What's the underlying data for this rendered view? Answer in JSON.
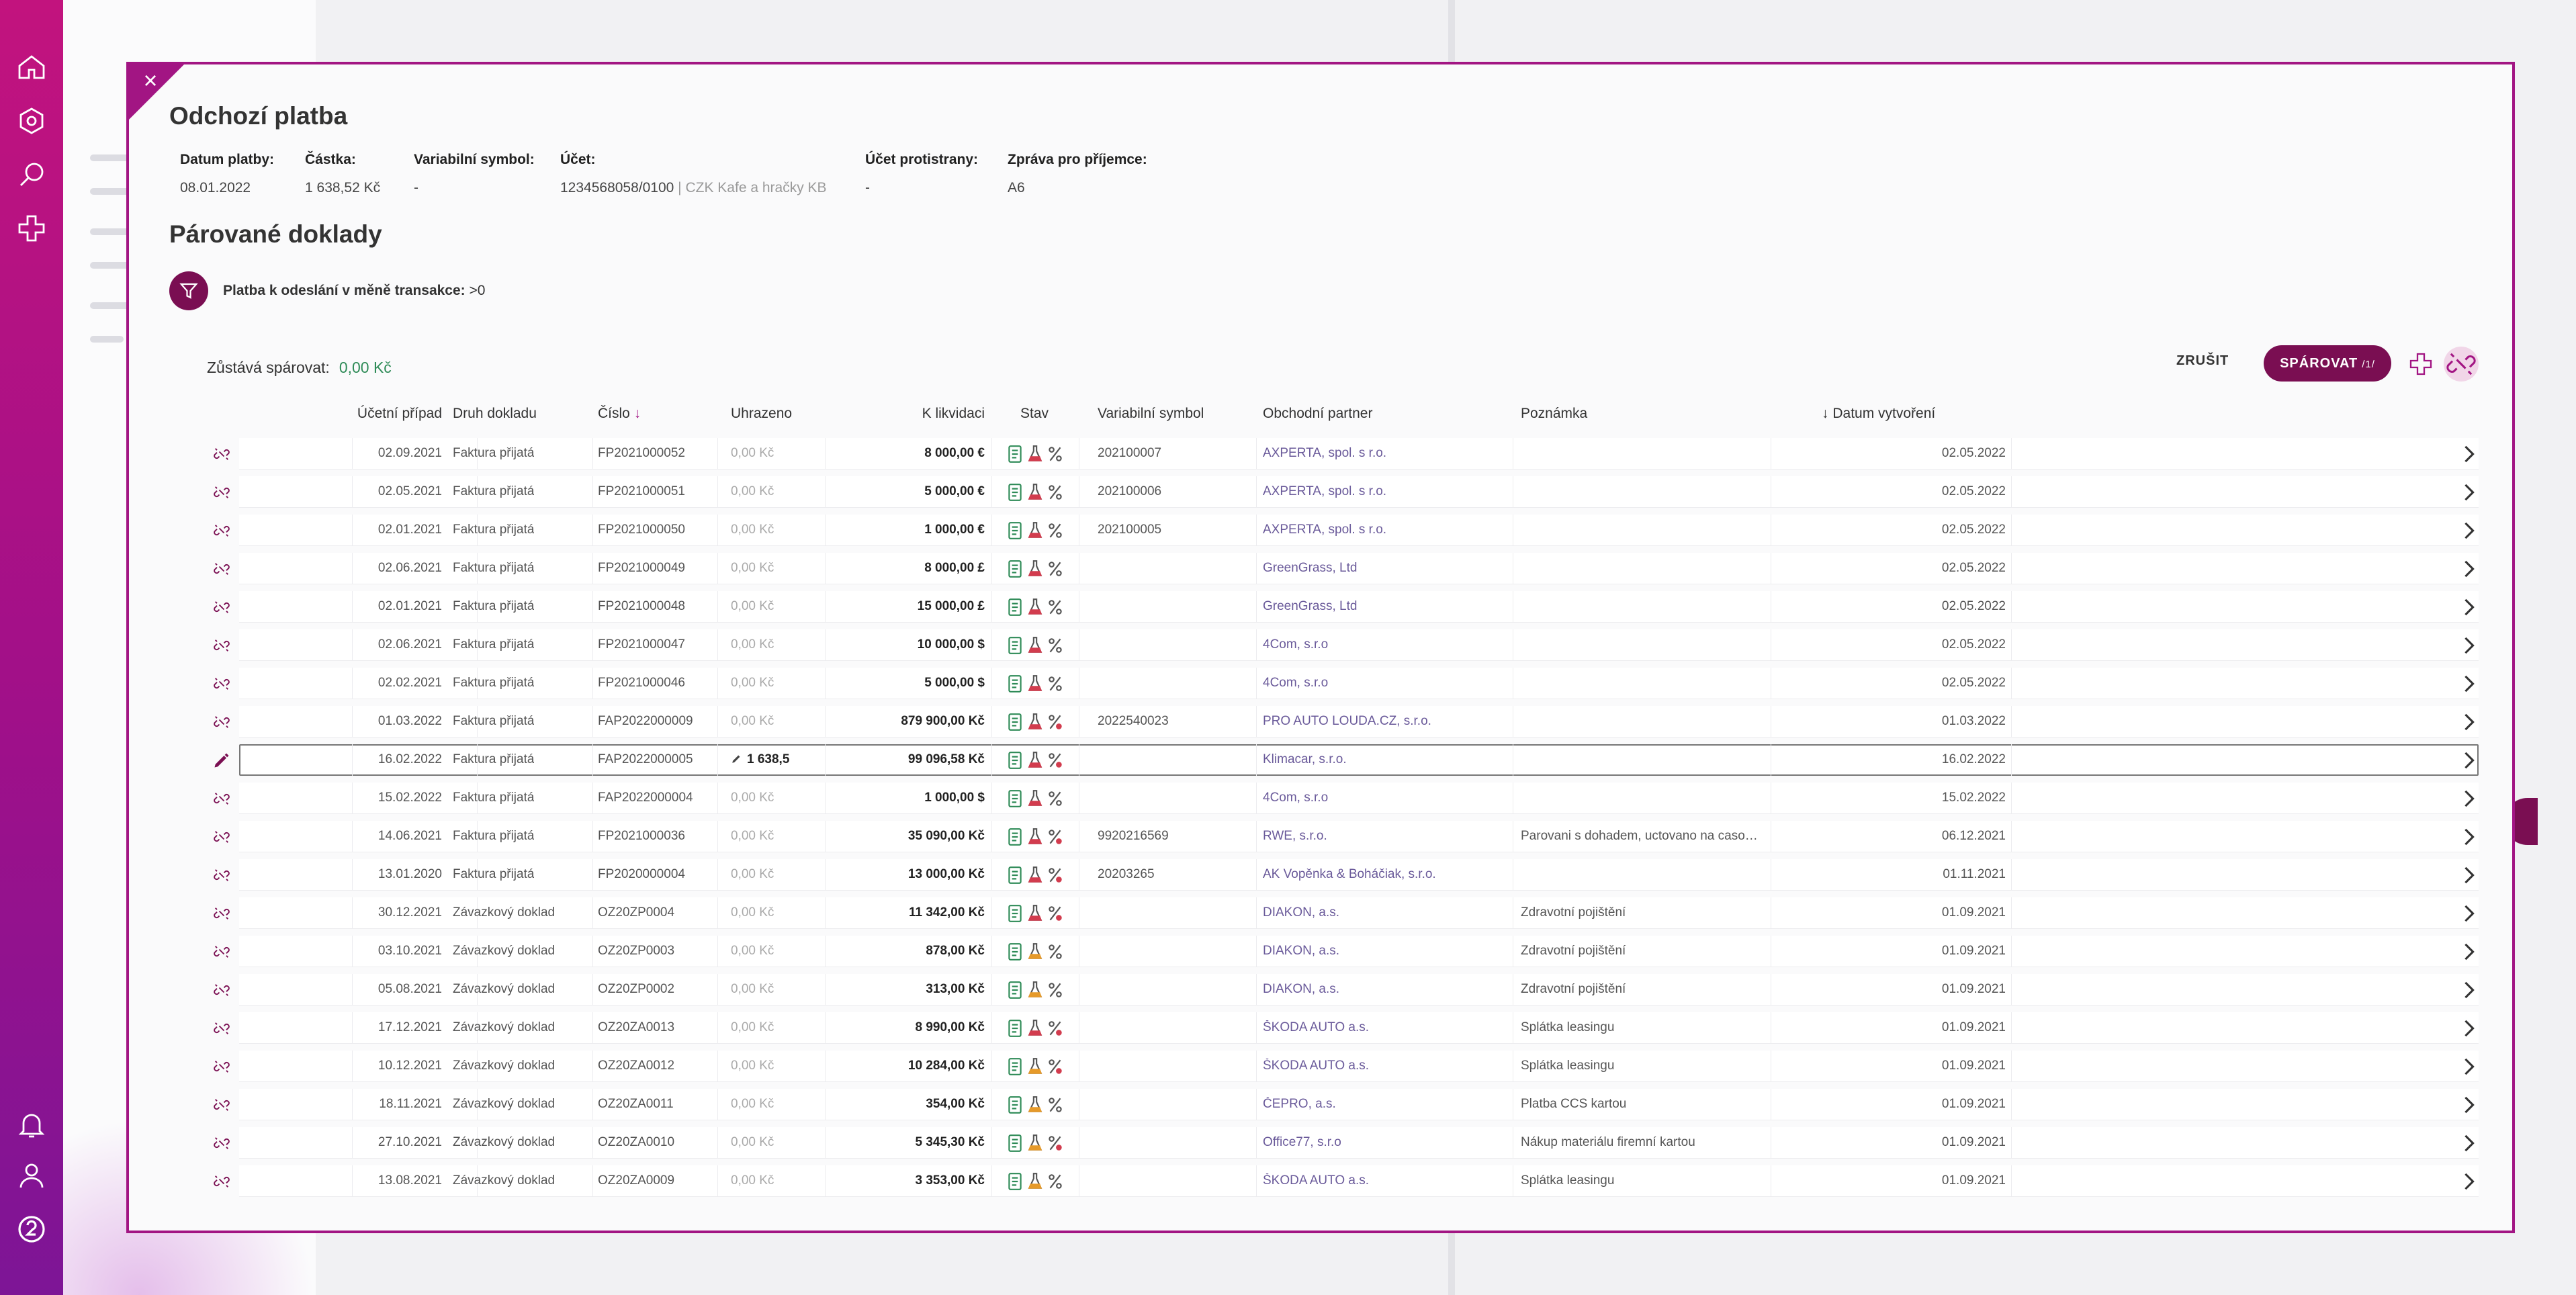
{
  "modal": {
    "title": "Odchozí platba",
    "paired_title": "Párované doklady"
  },
  "payment": [
    {
      "label": "Datum platby:",
      "value": "08.01.2022",
      "extra": ""
    },
    {
      "label": "Částka:",
      "value": "1 638,52 Kč",
      "extra": ""
    },
    {
      "label": "Variabilní symbol:",
      "value": "-",
      "extra": ""
    },
    {
      "label": "Účet:",
      "value": "1234568058/0100",
      "extra": " | CZK Kafe a hračky KB"
    },
    {
      "label": "Účet protistrany:",
      "value": "-",
      "extra": ""
    },
    {
      "label": "Zpráva pro příjemce:",
      "value": "A6",
      "extra": ""
    }
  ],
  "filter": {
    "label": "Platba k odeslání v měně transakce:",
    "value": ">0"
  },
  "remaining": {
    "label": "Zůstává spárovat:",
    "value": "0,00 Kč"
  },
  "actions": {
    "cancel": "ZRUŠIT",
    "pair": "SPÁROVAT",
    "pair_count": "/1/"
  },
  "columns": {
    "case": "Účetní případ",
    "doc_type": "Druh dokladu",
    "number": "Číslo",
    "number_sort": "↓",
    "paid": "Uhrazeno",
    "due": "K likvidaci",
    "status": "Stav",
    "vs": "Variabilní symbol",
    "partner": "Obchodní partner",
    "note": "Poznámka",
    "created": "Datum vytvoření",
    "created_sort": "↓"
  },
  "rows": [
    {
      "case": "02.09.2021",
      "doc_type": "Faktura přijatá",
      "number": "FP2021000052",
      "paid": "0,00 Kč",
      "due": "8 000,00 €",
      "vs": "202100007",
      "partner": "AXPERTA, spol. s r.o.",
      "note": "",
      "created": "02.05.2022",
      "s2": "red",
      "s3": "plain"
    },
    {
      "case": "02.05.2021",
      "doc_type": "Faktura přijatá",
      "number": "FP2021000051",
      "paid": "0,00 Kč",
      "due": "5 000,00 €",
      "vs": "202100006",
      "partner": "AXPERTA, spol. s r.o.",
      "note": "",
      "created": "02.05.2022",
      "s2": "red",
      "s3": "plain"
    },
    {
      "case": "02.01.2021",
      "doc_type": "Faktura přijatá",
      "number": "FP2021000050",
      "paid": "0,00 Kč",
      "due": "1 000,00 €",
      "vs": "202100005",
      "partner": "AXPERTA, spol. s r.o.",
      "note": "",
      "created": "02.05.2022",
      "s2": "red",
      "s3": "plain"
    },
    {
      "case": "02.06.2021",
      "doc_type": "Faktura přijatá",
      "number": "FP2021000049",
      "paid": "0,00 Kč",
      "due": "8 000,00 £",
      "vs": "",
      "partner": "GreenGrass, Ltd",
      "note": "",
      "created": "02.05.2022",
      "s2": "red",
      "s3": "plain"
    },
    {
      "case": "02.01.2021",
      "doc_type": "Faktura přijatá",
      "number": "FP2021000048",
      "paid": "0,00 Kč",
      "due": "15 000,00 £",
      "vs": "",
      "partner": "GreenGrass, Ltd",
      "note": "",
      "created": "02.05.2022",
      "s2": "red",
      "s3": "plain"
    },
    {
      "case": "02.06.2021",
      "doc_type": "Faktura přijatá",
      "number": "FP2021000047",
      "paid": "0,00 Kč",
      "due": "10 000,00 $",
      "vs": "",
      "partner": "4Com, s.r.o",
      "note": "",
      "created": "02.05.2022",
      "s2": "red",
      "s3": "plain"
    },
    {
      "case": "02.02.2021",
      "doc_type": "Faktura přijatá",
      "number": "FP2021000046",
      "paid": "0,00 Kč",
      "due": "5 000,00 $",
      "vs": "",
      "partner": "4Com, s.r.o",
      "note": "",
      "created": "02.05.2022",
      "s2": "red",
      "s3": "plain"
    },
    {
      "case": "01.03.2022",
      "doc_type": "Faktura přijatá",
      "number": "FAP2022000009",
      "paid": "0,00 Kč",
      "due": "879 900,00 Kč",
      "vs": "2022540023",
      "partner": "PRO AUTO LOUDA.CZ, s.r.o.",
      "note": "",
      "created": "01.03.2022",
      "s2": "red",
      "s3": "red"
    },
    {
      "case": "16.02.2022",
      "doc_type": "Faktura přijatá",
      "number": "FAP2022000005",
      "paid": "1 638,5",
      "due": "99 096,58 Kč",
      "vs": "",
      "partner": "Klimacar, s.r.o.",
      "note": "",
      "created": "16.02.2022",
      "s2": "red",
      "s3": "red",
      "active": true
    },
    {
      "case": "15.02.2022",
      "doc_type": "Faktura přijatá",
      "number": "FAP2022000004",
      "paid": "0,00 Kč",
      "due": "1 000,00 $",
      "vs": "",
      "partner": "4Com, s.r.o",
      "note": "",
      "created": "15.02.2022",
      "s2": "red",
      "s3": "plain"
    },
    {
      "case": "14.06.2021",
      "doc_type": "Faktura přijatá",
      "number": "FP2021000036",
      "paid": "0,00 Kč",
      "due": "35 090,00 Kč",
      "vs": "9920216569",
      "partner": "RWE, s.r.o.",
      "note": "Parovani s dohadem, uctovano na casove ro...",
      "created": "06.12.2021",
      "s2": "red",
      "s3": "red"
    },
    {
      "case": "13.01.2020",
      "doc_type": "Faktura přijatá",
      "number": "FP2020000004",
      "paid": "0,00 Kč",
      "due": "13 000,00 Kč",
      "vs": "20203265",
      "partner": "AK Vopěnka & Boháčiak, s.r.o.",
      "note": "",
      "created": "01.11.2021",
      "s2": "red",
      "s3": "red"
    },
    {
      "case": "30.12.2021",
      "doc_type": "Závazkový doklad",
      "number": "OZ20ZP0004",
      "paid": "0,00 Kč",
      "due": "11 342,00 Kč",
      "vs": "",
      "partner": "DIAKON, a.s.",
      "note": "Zdravotní pojištění",
      "created": "01.09.2021",
      "s2": "red",
      "s3": "red"
    },
    {
      "case": "03.10.2021",
      "doc_type": "Závazkový doklad",
      "number": "OZ20ZP0003",
      "paid": "0,00 Kč",
      "due": "878,00 Kč",
      "vs": "",
      "partner": "DIAKON, a.s.",
      "note": "Zdravotní pojištění",
      "created": "01.09.2021",
      "s2": "orange",
      "s3": "plain"
    },
    {
      "case": "05.08.2021",
      "doc_type": "Závazkový doklad",
      "number": "OZ20ZP0002",
      "paid": "0,00 Kč",
      "due": "313,00 Kč",
      "vs": "",
      "partner": "DIAKON, a.s.",
      "note": "Zdravotní pojištění",
      "created": "01.09.2021",
      "s2": "orange",
      "s3": "plain"
    },
    {
      "case": "17.12.2021",
      "doc_type": "Závazkový doklad",
      "number": "OZ20ZA0013",
      "paid": "0,00 Kč",
      "due": "8 990,00 Kč",
      "vs": "",
      "partner": "ŠKODA AUTO a.s.",
      "note": "Splátka leasingu",
      "created": "01.09.2021",
      "s2": "red",
      "s3": "red"
    },
    {
      "case": "10.12.2021",
      "doc_type": "Závazkový doklad",
      "number": "OZ20ZA0012",
      "paid": "0,00 Kč",
      "due": "10 284,00 Kč",
      "vs": "",
      "partner": "ŠKODA AUTO a.s.",
      "note": "Splátka leasingu",
      "created": "01.09.2021",
      "s2": "orange",
      "s3": "red"
    },
    {
      "case": "18.11.2021",
      "doc_type": "Závazkový doklad",
      "number": "OZ20ZA0011",
      "paid": "0,00 Kč",
      "due": "354,00 Kč",
      "vs": "",
      "partner": "ČEPRO, a.s.",
      "note": "Platba CCS kartou",
      "created": "01.09.2021",
      "s2": "orange",
      "s3": "plain"
    },
    {
      "case": "27.10.2021",
      "doc_type": "Závazkový doklad",
      "number": "OZ20ZA0010",
      "paid": "0,00 Kč",
      "due": "5 345,30 Kč",
      "vs": "",
      "partner": "Office77, s.r.o",
      "note": "Nákup materiálu firemní kartou",
      "created": "01.09.2021",
      "s2": "orange",
      "s3": "red"
    },
    {
      "case": "13.08.2021",
      "doc_type": "Závazkový doklad",
      "number": "OZ20ZA0009",
      "paid": "0,00 Kč",
      "due": "3 353,00 Kč",
      "vs": "",
      "partner": "ŠKODA AUTO a.s.",
      "note": "Splátka leasingu",
      "created": "01.09.2021",
      "s2": "orange",
      "s3": "plain"
    }
  ],
  "icons": {
    "rail": [
      "home-icon",
      "hexagon-icon",
      "search-icon",
      "plus-icon",
      "bell-icon",
      "user-icon",
      "help-icon"
    ],
    "unlink": "unlink-icon",
    "status": [
      "document-icon",
      "flask-icon",
      "percent-icon"
    ],
    "chevron": "chevron-right-icon"
  },
  "colors": {
    "brand": "#a21583",
    "brand_dark": "#7a0e52",
    "status_green": "#2e8b57",
    "status_red": "#d23c4e",
    "status_orange": "#e69a2a",
    "link": "#6a5a9a"
  }
}
